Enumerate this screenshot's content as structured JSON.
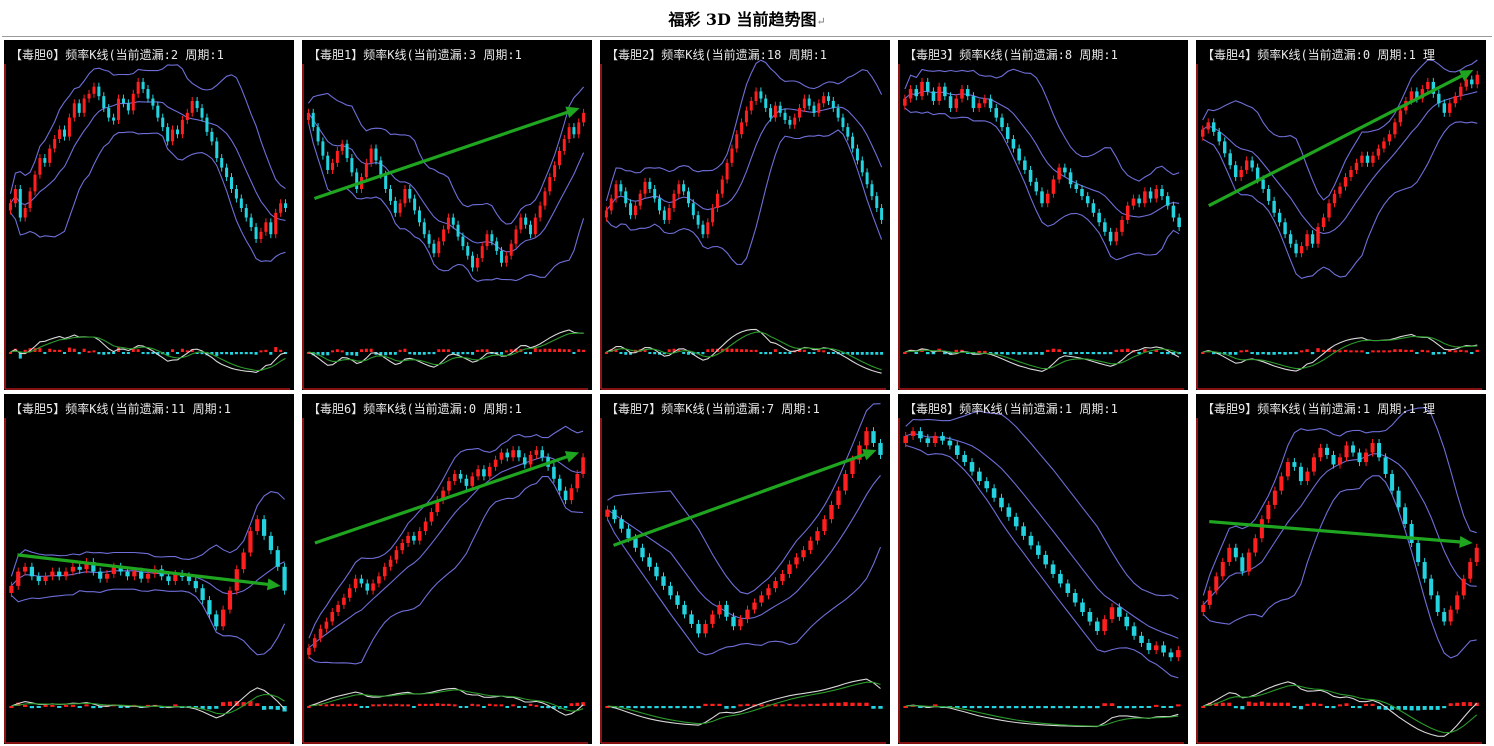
{
  "page": {
    "title": "福彩 3D 当前趋势图",
    "return_mark": "↵"
  },
  "colors": {
    "up": "#ff1f1f",
    "down": "#23d3df",
    "band": "#6e6ed8",
    "osc_white": "#d8d8d8",
    "osc_green": "#2c9a2c",
    "arrow": "#1fa51f",
    "frame": "#b01818",
    "background": "#000000"
  },
  "chart_data": [
    {
      "type": "bar",
      "title": "【毒胆0】频率K线(当前遗漏:2 周期:1",
      "series": [
        {
          "values": [
            44,
            50,
            38,
            42,
            49,
            56,
            63,
            61,
            67,
            71,
            75,
            72,
            80,
            86,
            82,
            88,
            90,
            93,
            89,
            84,
            80,
            79,
            88,
            86,
            83,
            90,
            95,
            92,
            88,
            85,
            80,
            76,
            70,
            75,
            73,
            79,
            82,
            87,
            84,
            80,
            74,
            70,
            63,
            59,
            55,
            50,
            46,
            42,
            38,
            34,
            29,
            32,
            36,
            31,
            40,
            44,
            42
          ]
        }
      ],
      "arrow": null
    },
    {
      "type": "bar",
      "title": "【毒胆1】频率K线(当前遗漏:3 周期:1",
      "series": [
        {
          "values": [
            82,
            76,
            70,
            64,
            58,
            61,
            66,
            69,
            63,
            57,
            50,
            55,
            61,
            67,
            62,
            56,
            50,
            45,
            40,
            44,
            50,
            46,
            41,
            36,
            31,
            27,
            23,
            28,
            33,
            38,
            35,
            30,
            26,
            22,
            17,
            21,
            26,
            31,
            28,
            24,
            19,
            22,
            27,
            33,
            38,
            35,
            31,
            38,
            43,
            49,
            55,
            60,
            66,
            71,
            76,
            73,
            78,
            82
          ]
        }
      ],
      "arrow": [
        0.06,
        0.53
      ]
    },
    {
      "type": "bar",
      "title": "【毒胆2】频率K线(当前遗漏:18 周期:1",
      "series": [
        {
          "values": [
            41,
            46,
            52,
            49,
            44,
            39,
            43,
            48,
            53,
            50,
            46,
            41,
            37,
            42,
            48,
            52,
            49,
            44,
            39,
            35,
            31,
            36,
            42,
            48,
            54,
            61,
            67,
            73,
            78,
            83,
            87,
            91,
            88,
            84,
            80,
            85,
            82,
            79,
            77,
            80,
            84,
            88,
            85,
            82,
            86,
            89,
            87,
            84,
            80,
            76,
            72,
            67,
            62,
            57,
            52,
            47,
            42,
            37
          ]
        }
      ],
      "arrow": null
    },
    {
      "type": "bar",
      "title": "【毒胆3】频率K线(当前遗漏:8 周期:1",
      "series": [
        {
          "values": [
            88,
            92,
            89,
            95,
            91,
            87,
            93,
            89,
            84,
            88,
            92,
            89,
            84,
            86,
            88,
            84,
            80,
            76,
            71,
            67,
            62,
            58,
            53,
            49,
            44,
            48,
            54,
            59,
            57,
            52,
            50,
            47,
            44,
            40,
            36,
            32,
            28,
            32,
            37,
            43,
            46,
            44,
            49,
            46,
            50,
            47,
            43,
            38,
            34
          ]
        }
      ],
      "arrow": null
    },
    {
      "type": "bar",
      "title": "【毒胆4】频率K线(当前遗漏:0 周期:1 理",
      "series": [
        {
          "values": [
            75,
            78,
            74,
            70,
            65,
            60,
            55,
            58,
            62,
            59,
            54,
            50,
            45,
            40,
            36,
            31,
            27,
            23,
            26,
            31,
            27,
            34,
            38,
            44,
            48,
            51,
            55,
            58,
            61,
            64,
            61,
            64,
            67,
            70,
            73,
            78,
            83,
            87,
            91,
            88,
            92,
            95,
            90,
            86,
            82,
            86,
            89,
            93,
            96,
            94,
            98
          ]
        }
      ],
      "arrow": [
        0.03,
        0.59
      ]
    },
    {
      "type": "bar",
      "title": "【毒胆5】频率K线(当前遗漏:11 周期:1",
      "series": [
        {
          "values": [
            32,
            38,
            40,
            36,
            34,
            36,
            38,
            36,
            38,
            40,
            39,
            42,
            38,
            35,
            37,
            40,
            38,
            36,
            38,
            35,
            37,
            39,
            36,
            34,
            37,
            36,
            34,
            31,
            26,
            20,
            15,
            22,
            30,
            39,
            46,
            55,
            60,
            53,
            47,
            40,
            30
          ]
        }
      ],
      "arrow": [
        0.05,
        0.53
      ]
    },
    {
      "type": "bar",
      "title": "【毒胆6】频率K线(当前遗漏:0 周期:1",
      "series": [
        {
          "values": [
            6,
            10,
            14,
            17,
            21,
            24,
            27,
            31,
            35,
            33,
            30,
            33,
            36,
            40,
            43,
            47,
            50,
            53,
            51,
            55,
            59,
            63,
            68,
            72,
            76,
            79,
            77,
            74,
            78,
            81,
            78,
            82,
            85,
            88,
            86,
            89,
            86,
            83,
            87,
            89,
            86,
            82,
            77,
            72,
            68,
            73,
            79,
            86
          ]
        }
      ],
      "arrow": [
        0.1,
        0.89
      ]
    },
    {
      "type": "bar",
      "title": "【毒胆7】频率K线(当前遗漏:7 周期:1",
      "series": [
        {
          "values": [
            64,
            60,
            56,
            52,
            48,
            44,
            40,
            36,
            32,
            28,
            24,
            20,
            16,
            12,
            16,
            20,
            24,
            19,
            15,
            18,
            22,
            25,
            28,
            31,
            34,
            37,
            41,
            44,
            47,
            51,
            55,
            60,
            66,
            72,
            79,
            85,
            91,
            97,
            92,
            87
          ]
        }
      ],
      "arrow": [
        0.09,
        0.72
      ]
    },
    {
      "type": "bar",
      "title": "【毒胆8】频率K线(当前遗漏:1 周期:1",
      "series": [
        {
          "values": [
            95,
            97,
            94,
            92,
            95,
            93,
            91,
            87,
            84,
            80,
            76,
            73,
            69,
            65,
            61,
            57,
            53,
            49,
            45,
            41,
            37,
            33,
            29,
            25,
            21,
            17,
            13,
            18,
            23,
            19,
            15,
            11,
            8,
            5,
            7,
            4,
            2,
            5
          ]
        }
      ],
      "arrow": null
    },
    {
      "type": "bar",
      "title": "【毒胆9】频率K线(当前遗漏:1 周期:1 理",
      "series": [
        {
          "values": [
            24,
            30,
            36,
            42,
            48,
            44,
            38,
            46,
            52,
            60,
            66,
            72,
            78,
            84,
            82,
            76,
            80,
            86,
            90,
            87,
            83,
            86,
            91,
            88,
            84,
            88,
            92,
            86,
            79,
            72,
            65,
            58,
            50,
            42,
            35,
            28,
            21,
            17,
            22,
            28,
            35,
            42,
            48
          ]
        }
      ],
      "arrow": [
        0.19,
        0.45
      ]
    }
  ]
}
